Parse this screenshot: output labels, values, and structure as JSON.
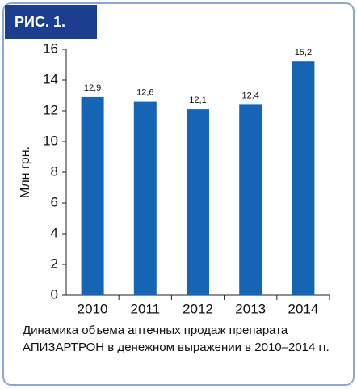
{
  "chart_data": {
    "type": "bar",
    "label": "РИС. 1.",
    "ylabel": "Млн грн.",
    "caption": "Динамика объема аптечных продаж препарата АПИЗАРТРОН в денежном выражении в 2010–2014 гг.",
    "categories": [
      "2010",
      "2011",
      "2012",
      "2013",
      "2014"
    ],
    "values": [
      12.9,
      12.6,
      12.1,
      12.4,
      15.2
    ],
    "value_labels": [
      "12,9",
      "12,6",
      "12,1",
      "12,4",
      "15,2"
    ],
    "color": "#1565b4",
    "ylim": [
      0,
      16
    ],
    "yticks": [
      0,
      2,
      4,
      6,
      8,
      10,
      12,
      14,
      16
    ],
    "grid": false
  }
}
